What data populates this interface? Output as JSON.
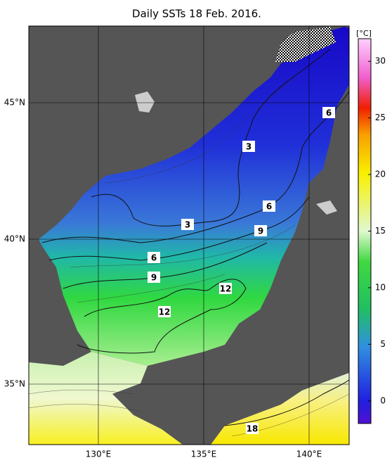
{
  "title": "Daily SSTs 18 Feb. 2016.",
  "map": {
    "lat_labels": [
      "45°N",
      "40°N",
      "35°N"
    ],
    "lon_labels": [
      "130°E",
      "135°E",
      "140°E"
    ],
    "contour_labels": [
      6,
      3,
      6,
      3,
      9,
      6,
      9,
      12,
      12,
      18
    ]
  },
  "colorbar": {
    "unit": "[°C]",
    "range": [
      -2,
      32
    ],
    "ticks": [
      0,
      5,
      10,
      15,
      20,
      25,
      30
    ]
  }
}
